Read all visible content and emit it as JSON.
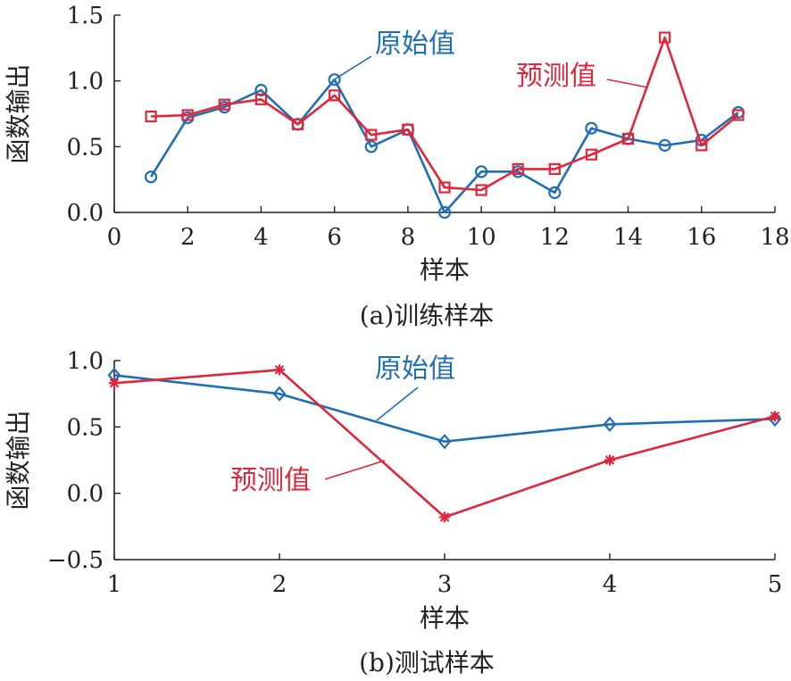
{
  "chart_data": [
    {
      "type": "line",
      "caption": "(a)训练样本",
      "xlabel": "样本",
      "ylabel": "函数输出",
      "xlim": [
        0,
        18
      ],
      "ylim": [
        0,
        1.5
      ],
      "xticks": [
        "0",
        "2",
        "4",
        "6",
        "8",
        "10",
        "12",
        "14",
        "16",
        "18"
      ],
      "yticks": [
        "0.0",
        "0.5",
        "1.0",
        "1.5"
      ],
      "series": [
        {
          "name": "原始值",
          "color": "#1f6fb4",
          "marker": "circle",
          "x": [
            1,
            2,
            3,
            4,
            5,
            6,
            7,
            8,
            9,
            10,
            11,
            12,
            13,
            14,
            15,
            16,
            17
          ],
          "y": [
            0.27,
            0.72,
            0.8,
            0.93,
            0.67,
            1.01,
            0.5,
            0.63,
            0.0,
            0.31,
            0.31,
            0.15,
            0.64,
            0.56,
            0.51,
            0.55,
            0.76
          ]
        },
        {
          "name": "预测值",
          "color": "#e0263a",
          "marker": "square",
          "x": [
            1,
            2,
            3,
            4,
            5,
            6,
            7,
            8,
            9,
            10,
            11,
            12,
            13,
            14,
            15,
            16,
            17
          ],
          "y": [
            0.73,
            0.74,
            0.82,
            0.86,
            0.67,
            0.89,
            0.59,
            0.63,
            0.19,
            0.17,
            0.33,
            0.33,
            0.44,
            0.56,
            1.33,
            0.51,
            0.74
          ]
        }
      ]
    },
    {
      "type": "line",
      "caption": "(b)测试样本",
      "xlabel": "样本",
      "ylabel": "函数输出",
      "xlim": [
        1,
        5
      ],
      "ylim": [
        -0.5,
        1.0
      ],
      "xticks": [
        "1",
        "2",
        "3",
        "4",
        "5"
      ],
      "yticks": [
        "−0.5",
        "0.0",
        "0.5",
        "1.0"
      ],
      "series": [
        {
          "name": "原始值",
          "color": "#1f6fb4",
          "marker": "diamond",
          "x": [
            1,
            2,
            3,
            4,
            5
          ],
          "y": [
            0.89,
            0.75,
            0.39,
            0.52,
            0.56
          ]
        },
        {
          "name": "预测值",
          "color": "#e0263a",
          "marker": "asterisk",
          "x": [
            1,
            2,
            3,
            4,
            5
          ],
          "y": [
            0.83,
            0.93,
            -0.18,
            0.25,
            0.58
          ]
        }
      ]
    }
  ]
}
